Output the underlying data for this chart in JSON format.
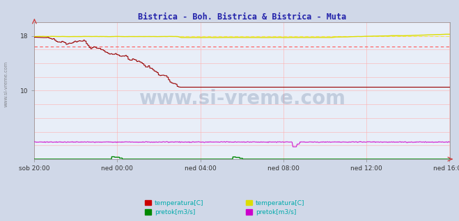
{
  "title": "Bistrica - Boh. Bistrica & Bistrica - Muta",
  "title_color": "#2222aa",
  "background_color": "#d0d8e8",
  "plot_bg_color": "#e8eef8",
  "grid_color": "#ffb0b0",
  "grid_alpha": 0.8,
  "xlabel_ticks": [
    "sob 20:00",
    "ned 00:00",
    "ned 04:00",
    "ned 08:00",
    "ned 12:00",
    "ned 16:00"
  ],
  "xlabel_positions_frac": [
    0.0,
    0.2,
    0.4,
    0.6,
    0.8,
    1.0
  ],
  "total_points": 1440,
  "ylim": [
    0,
    20
  ],
  "ytick_vals": [
    10,
    18
  ],
  "avg_line_red": 16.4,
  "avg_line_yellow": 17.95,
  "watermark": "www.si-vreme.com",
  "watermark_color": "#1a3a6a",
  "watermark_alpha": 0.18,
  "legend_text_color": "#00aaaa",
  "legend": [
    {
      "label": "temperatura[C]",
      "color": "#cc0000"
    },
    {
      "label": "pretok[m3/s]",
      "color": "#008800"
    },
    {
      "label": "temperatura[C]",
      "color": "#dddd00"
    },
    {
      "label": "pretok[m3/s]",
      "color": "#cc00cc"
    }
  ],
  "side_label": "www.si-vreme.com",
  "temp1_color": "#990000",
  "temp2_color": "#dddd00",
  "pretok1_color": "#008800",
  "pretok2_color": "#cc00cc",
  "avg1_color": "#ff5555",
  "avg2_color": "#eeee44"
}
